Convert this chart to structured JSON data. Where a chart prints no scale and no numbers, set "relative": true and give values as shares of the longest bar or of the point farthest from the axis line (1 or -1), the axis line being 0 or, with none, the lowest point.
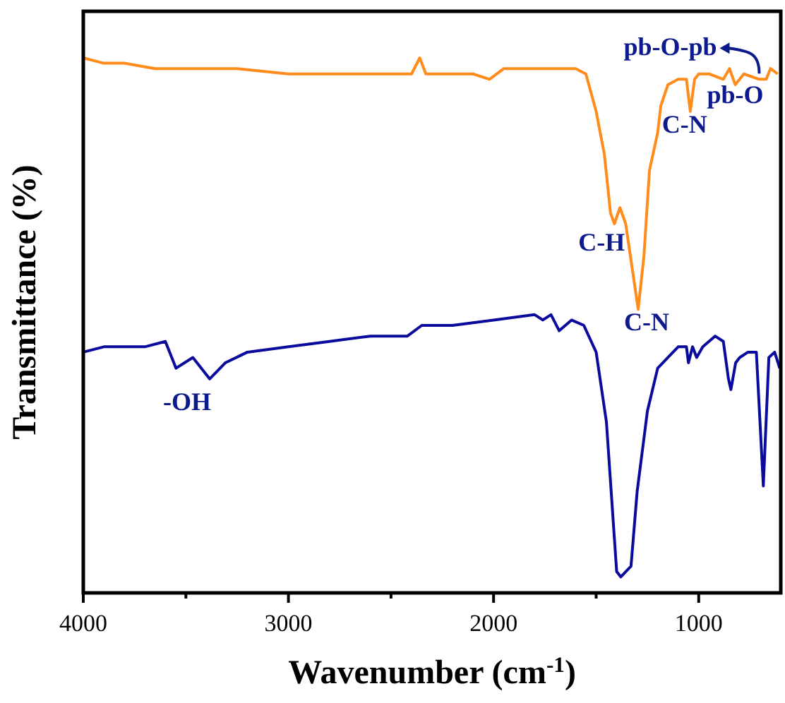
{
  "chart_data": {
    "type": "line",
    "relative": true,
    "xlabel": "Wavenumber (cm$^{-1}$)",
    "ylabel": "Transmittance (%)",
    "xlim": [
      4000,
      600
    ],
    "xticks": [
      4000,
      {
        "value": 3500,
        "label": null
      },
      3000,
      {
        "value": 2500,
        "label": null
      },
      2000,
      {
        "value": 1500,
        "label": null
      },
      1000
    ],
    "grid": false,
    "marker": "none",
    "line_style": "solid",
    "series": [
      {
        "color": "#ff8c1a",
        "x": [
          4000,
          3900,
          3800,
          3650,
          3500,
          3250,
          3000,
          2750,
          2500,
          2400,
          2360,
          2330,
          2200,
          2100,
          2020,
          1950,
          1800,
          1700,
          1600,
          1550,
          1500,
          1460,
          1430,
          1411,
          1384,
          1356,
          1295,
          1267,
          1240,
          1200,
          1185,
          1150,
          1100,
          1060,
          1041,
          1020,
          1000,
          950,
          880,
          850,
          822,
          780,
          705,
          671,
          650,
          615
        ],
        "values": [
          1.0,
          0.99,
          0.99,
          0.98,
          0.98,
          0.98,
          0.97,
          0.97,
          0.97,
          0.97,
          1.0,
          0.97,
          0.97,
          0.97,
          0.96,
          0.98,
          0.98,
          0.98,
          0.98,
          0.97,
          0.9,
          0.82,
          0.71,
          0.69,
          0.72,
          0.69,
          0.53,
          0.63,
          0.79,
          0.86,
          0.91,
          0.95,
          0.96,
          0.96,
          0.9,
          0.96,
          0.97,
          0.97,
          0.96,
          0.98,
          0.95,
          0.97,
          0.96,
          0.96,
          0.98,
          0.97
        ]
      },
      {
        "color": "#0a0a9c",
        "x": [
          4000,
          3900,
          3800,
          3700,
          3600,
          3548,
          3466,
          3384,
          3308,
          3200,
          3000,
          2800,
          2600,
          2420,
          2350,
          2200,
          2000,
          1800,
          1760,
          1720,
          1680,
          1620,
          1560,
          1500,
          1450,
          1400,
          1380,
          1330,
          1300,
          1250,
          1200,
          1150,
          1100,
          1060,
          1050,
          1030,
          1010,
          980,
          920,
          880,
          855,
          843,
          820,
          800,
          760,
          719,
          685,
          658,
          630,
          605
        ],
        "values": [
          0.45,
          0.46,
          0.46,
          0.46,
          0.47,
          0.42,
          0.44,
          0.4,
          0.43,
          0.45,
          0.46,
          0.47,
          0.48,
          0.48,
          0.5,
          0.5,
          0.51,
          0.52,
          0.51,
          0.52,
          0.49,
          0.51,
          0.5,
          0.45,
          0.32,
          0.04,
          0.03,
          0.05,
          0.19,
          0.34,
          0.42,
          0.44,
          0.46,
          0.46,
          0.43,
          0.46,
          0.44,
          0.46,
          0.48,
          0.47,
          0.4,
          0.38,
          0.43,
          0.44,
          0.45,
          0.45,
          0.2,
          0.44,
          0.45,
          0.42
        ]
      }
    ],
    "annotations": [
      {
        "text": "-OH",
        "x": 3384,
        "y": 0.4
      },
      {
        "text": "C-H",
        "x": 1411,
        "y": 0.69
      },
      {
        "text": "C-N",
        "x": 1295,
        "y": 0.53
      },
      {
        "text": "C-N",
        "x": 1041,
        "y": 0.9
      },
      {
        "text": "pb-O",
        "x": 822,
        "y": 0.95
      },
      {
        "text": "pb-O-pb",
        "x": 705,
        "y": 0.96
      }
    ]
  }
}
